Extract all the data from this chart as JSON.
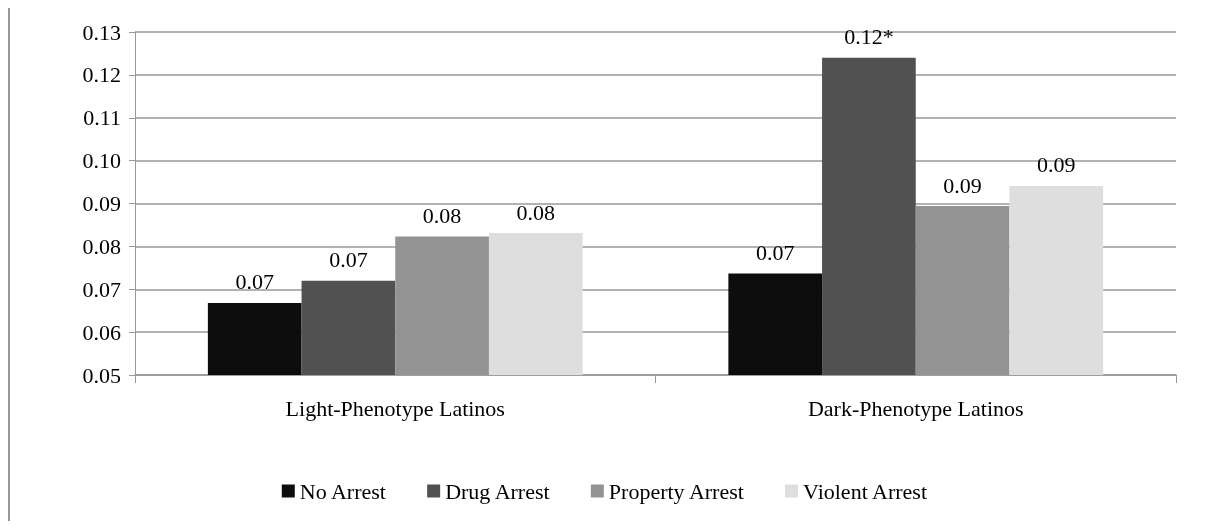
{
  "chart_data": {
    "type": "bar",
    "categories": [
      "Light-Phenotype Latinos",
      "Dark-Phenotype Latinos"
    ],
    "series": [
      {
        "name": "No Arrest",
        "color": "#0d0d0d",
        "values": [
          0.0668,
          0.0737
        ],
        "value_labels": [
          "0.07",
          "0.07"
        ]
      },
      {
        "name": "Drug Arrest",
        "color": "#515151",
        "values": [
          0.072,
          0.124
        ],
        "value_labels": [
          "0.07",
          "0.12*"
        ]
      },
      {
        "name": "Property Arrest",
        "color": "#939393",
        "values": [
          0.0823,
          0.0894
        ],
        "value_labels": [
          "0.08",
          "0.09"
        ]
      },
      {
        "name": "Violent Arrest",
        "color": "#dedede",
        "values": [
          0.0831,
          0.0941
        ],
        "value_labels": [
          "0.08",
          "0.09"
        ]
      }
    ],
    "ylim": [
      0.05,
      0.13
    ],
    "yticks": [
      {
        "value": 0.05,
        "label": "0.05"
      },
      {
        "value": 0.06,
        "label": "0.06"
      },
      {
        "value": 0.07,
        "label": "0.07"
      },
      {
        "value": 0.08,
        "label": "0.08"
      },
      {
        "value": 0.09,
        "label": "0.09"
      },
      {
        "value": 0.1,
        "label": "0.10"
      },
      {
        "value": 0.11,
        "label": "0.11"
      },
      {
        "value": 0.12,
        "label": "0.12"
      },
      {
        "value": 0.13,
        "label": "0.13"
      }
    ],
    "grid": "y",
    "legend": "bottom"
  }
}
